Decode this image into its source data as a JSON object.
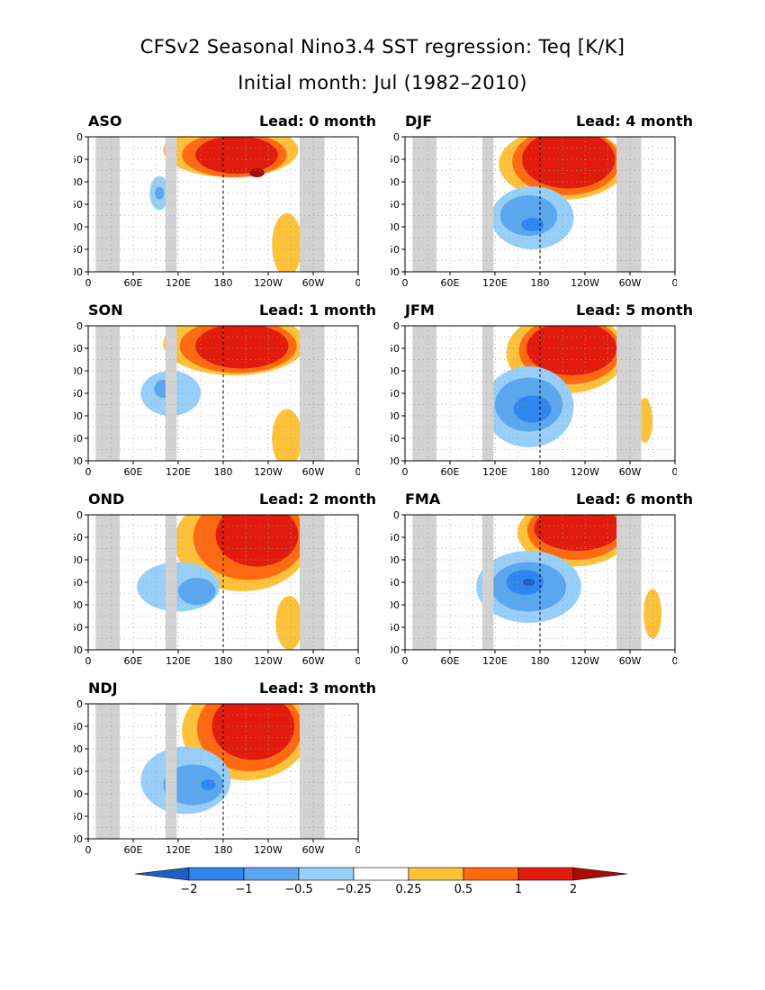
{
  "page": {
    "title_line1": "CFSv2 Seasonal Nino3.4 SST regression: Teq [K/K]",
    "title_line2": "Initial month: Jul (1982–2010)"
  },
  "colors": {
    "land_mask": "#d2d2d2",
    "contour_fill": [
      "#1d5ec9",
      "#2f86f0",
      "#5aa6ef",
      "#97cff8",
      "#ffffff",
      "#fec23a",
      "#ff6a10",
      "#e11c0d",
      "#a50d05"
    ]
  },
  "colorbar": {
    "levels": [
      "-2",
      "-1",
      "-0.5",
      "-0.25",
      "0.25",
      "0.5",
      "1",
      "2"
    ]
  },
  "chart_data": [
    {
      "type": "heatmap",
      "season": "ASO",
      "lead": "Lead: 0 month",
      "x_ticks": [
        "0",
        "60E",
        "120E",
        "180",
        "120W",
        "60W",
        "0"
      ],
      "y_ticks": [
        "0",
        "50",
        "100",
        "150",
        "200",
        "250",
        "300"
      ],
      "xlim": [
        0,
        360
      ],
      "ylim": [
        300,
        0
      ],
      "grid": true,
      "dateline_x": 180,
      "masks": [
        [
          10,
          42
        ],
        [
          103,
          118
        ],
        [
          282,
          315
        ]
      ],
      "blobs": [
        {
          "x": 190,
          "y": 30,
          "rx": 90,
          "ry": 60,
          "level": 5
        },
        {
          "x": 195,
          "y": 40,
          "rx": 70,
          "ry": 50,
          "level": 6
        },
        {
          "x": 198,
          "y": 40,
          "rx": 55,
          "ry": 42,
          "level": 7
        },
        {
          "x": 225,
          "y": 80,
          "rx": 10,
          "ry": 10,
          "level": 8
        },
        {
          "x": 95,
          "y": 125,
          "rx": 13,
          "ry": 38,
          "level": 3
        },
        {
          "x": 95,
          "y": 125,
          "rx": 6,
          "ry": 14,
          "level": 2
        },
        {
          "x": 265,
          "y": 240,
          "rx": 20,
          "ry": 70,
          "level": 5
        }
      ]
    },
    {
      "type": "heatmap",
      "season": "DJF",
      "lead": "Lead: 4 month",
      "x_ticks": [
        "0",
        "60E",
        "120E",
        "180",
        "120W",
        "60W",
        "0"
      ],
      "y_ticks": [
        "0",
        "50",
        "100",
        "150",
        "200",
        "250",
        "300"
      ],
      "xlim": [
        0,
        360
      ],
      "ylim": [
        300,
        0
      ],
      "grid": true,
      "dateline_x": 180,
      "masks": [
        [
          10,
          42
        ],
        [
          103,
          118
        ],
        [
          282,
          315
        ]
      ],
      "blobs": [
        {
          "x": 210,
          "y": 60,
          "rx": 85,
          "ry": 80,
          "level": 5
        },
        {
          "x": 215,
          "y": 55,
          "rx": 72,
          "ry": 75,
          "level": 6
        },
        {
          "x": 218,
          "y": 50,
          "rx": 62,
          "ry": 65,
          "level": 7
        },
        {
          "x": 170,
          "y": 180,
          "rx": 55,
          "ry": 70,
          "level": 3
        },
        {
          "x": 165,
          "y": 175,
          "rx": 38,
          "ry": 45,
          "level": 2
        },
        {
          "x": 170,
          "y": 195,
          "rx": 15,
          "ry": 15,
          "level": 1
        }
      ]
    },
    {
      "type": "heatmap",
      "season": "SON",
      "lead": "Lead: 1 month",
      "x_ticks": [
        "0",
        "60E",
        "120E",
        "180",
        "120W",
        "60W",
        "0"
      ],
      "y_ticks": [
        "0",
        "50",
        "100",
        "150",
        "200",
        "250",
        "300"
      ],
      "xlim": [
        0,
        360
      ],
      "ylim": [
        300,
        0
      ],
      "grid": true,
      "dateline_x": 180,
      "masks": [
        [
          10,
          42
        ],
        [
          103,
          118
        ],
        [
          282,
          315
        ]
      ],
      "blobs": [
        {
          "x": 195,
          "y": 40,
          "rx": 95,
          "ry": 70,
          "level": 5
        },
        {
          "x": 200,
          "y": 45,
          "rx": 78,
          "ry": 60,
          "level": 6
        },
        {
          "x": 205,
          "y": 45,
          "rx": 62,
          "ry": 50,
          "level": 7
        },
        {
          "x": 110,
          "y": 150,
          "rx": 40,
          "ry": 50,
          "level": 3
        },
        {
          "x": 100,
          "y": 140,
          "rx": 12,
          "ry": 20,
          "level": 2
        },
        {
          "x": 265,
          "y": 250,
          "rx": 20,
          "ry": 65,
          "level": 5
        }
      ]
    },
    {
      "type": "heatmap",
      "season": "JFM",
      "lead": "Lead: 5 month",
      "x_ticks": [
        "0",
        "60E",
        "120E",
        "180",
        "120W",
        "60W",
        "0"
      ],
      "y_ticks": [
        "0",
        "50",
        "100",
        "150",
        "200",
        "250",
        "300"
      ],
      "xlim": [
        0,
        360
      ],
      "ylim": [
        300,
        0
      ],
      "grid": true,
      "dateline_x": 180,
      "masks": [
        [
          10,
          42
        ],
        [
          103,
          118
        ],
        [
          282,
          315
        ]
      ],
      "blobs": [
        {
          "x": 215,
          "y": 60,
          "rx": 80,
          "ry": 90,
          "level": 5
        },
        {
          "x": 220,
          "y": 55,
          "rx": 68,
          "ry": 75,
          "level": 6
        },
        {
          "x": 222,
          "y": 50,
          "rx": 60,
          "ry": 60,
          "level": 7
        },
        {
          "x": 165,
          "y": 180,
          "rx": 60,
          "ry": 90,
          "level": 3
        },
        {
          "x": 165,
          "y": 175,
          "rx": 45,
          "ry": 60,
          "level": 2
        },
        {
          "x": 170,
          "y": 185,
          "rx": 25,
          "ry": 30,
          "level": 1
        },
        {
          "x": 320,
          "y": 210,
          "rx": 10,
          "ry": 50,
          "level": 5
        }
      ]
    },
    {
      "type": "heatmap",
      "season": "OND",
      "lead": "Lead: 2 month",
      "x_ticks": [
        "0",
        "60E",
        "120E",
        "180",
        "120W",
        "60W",
        "0"
      ],
      "y_ticks": [
        "0",
        "50",
        "100",
        "150",
        "200",
        "250",
        "300"
      ],
      "xlim": [
        0,
        360
      ],
      "ylim": [
        300,
        0
      ],
      "grid": true,
      "dateline_x": 180,
      "masks": [
        [
          10,
          42
        ],
        [
          103,
          118
        ],
        [
          282,
          315
        ]
      ],
      "blobs": [
        {
          "x": 205,
          "y": 60,
          "rx": 90,
          "ry": 110,
          "level": 5
        },
        {
          "x": 215,
          "y": 50,
          "rx": 75,
          "ry": 95,
          "level": 6
        },
        {
          "x": 225,
          "y": 45,
          "rx": 55,
          "ry": 70,
          "level": 7
        },
        {
          "x": 120,
          "y": 160,
          "rx": 55,
          "ry": 55,
          "level": 3
        },
        {
          "x": 145,
          "y": 170,
          "rx": 25,
          "ry": 30,
          "level": 2
        },
        {
          "x": 268,
          "y": 240,
          "rx": 18,
          "ry": 60,
          "level": 5
        }
      ]
    },
    {
      "type": "heatmap",
      "season": "FMA",
      "lead": "Lead: 6 month",
      "x_ticks": [
        "0",
        "60E",
        "120E",
        "180",
        "120W",
        "60W",
        "0"
      ],
      "y_ticks": [
        "0",
        "50",
        "100",
        "150",
        "200",
        "250",
        "300"
      ],
      "xlim": [
        0,
        360
      ],
      "ylim": [
        300,
        0
      ],
      "grid": true,
      "dateline_x": 180,
      "masks": [
        [
          10,
          42
        ],
        [
          103,
          118
        ],
        [
          282,
          315
        ]
      ],
      "blobs": [
        {
          "x": 225,
          "y": 40,
          "rx": 75,
          "ry": 75,
          "level": 5
        },
        {
          "x": 228,
          "y": 35,
          "rx": 65,
          "ry": 65,
          "level": 6
        },
        {
          "x": 230,
          "y": 30,
          "rx": 58,
          "ry": 50,
          "level": 7
        },
        {
          "x": 165,
          "y": 160,
          "rx": 70,
          "ry": 80,
          "level": 3
        },
        {
          "x": 165,
          "y": 160,
          "rx": 50,
          "ry": 55,
          "level": 2
        },
        {
          "x": 160,
          "y": 150,
          "rx": 25,
          "ry": 28,
          "level": 1
        },
        {
          "x": 165,
          "y": 150,
          "rx": 8,
          "ry": 8,
          "level": 0
        },
        {
          "x": 330,
          "y": 220,
          "rx": 12,
          "ry": 55,
          "level": 5
        }
      ]
    },
    {
      "type": "heatmap",
      "season": "NDJ",
      "lead": "Lead: 3 month",
      "x_ticks": [
        "0",
        "60E",
        "120E",
        "180",
        "120W",
        "60W",
        "0"
      ],
      "y_ticks": [
        "0",
        "50",
        "100",
        "150",
        "200",
        "250",
        "300"
      ],
      "xlim": [
        0,
        360
      ],
      "ylim": [
        300,
        0
      ],
      "grid": true,
      "dateline_x": 180,
      "masks": [
        [
          10,
          42
        ],
        [
          103,
          118
        ],
        [
          282,
          315
        ]
      ],
      "blobs": [
        {
          "x": 210,
          "y": 60,
          "rx": 85,
          "ry": 110,
          "level": 5
        },
        {
          "x": 215,
          "y": 55,
          "rx": 70,
          "ry": 95,
          "level": 6
        },
        {
          "x": 220,
          "y": 50,
          "rx": 55,
          "ry": 75,
          "level": 7
        },
        {
          "x": 130,
          "y": 170,
          "rx": 60,
          "ry": 75,
          "level": 3
        },
        {
          "x": 140,
          "y": 180,
          "rx": 40,
          "ry": 45,
          "level": 2
        },
        {
          "x": 160,
          "y": 180,
          "rx": 10,
          "ry": 12,
          "level": 1
        }
      ]
    }
  ]
}
